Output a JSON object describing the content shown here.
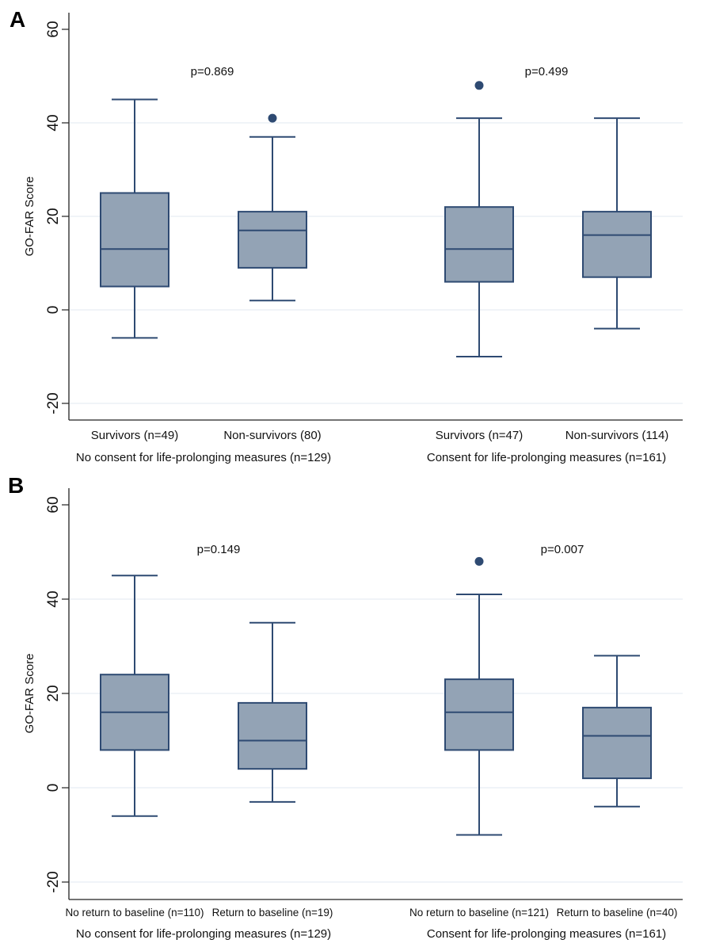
{
  "figure": {
    "colors": {
      "box_fill": "#93a3b5",
      "box_stroke": "#2e4a72",
      "outlier": "#2e4a72",
      "grid": "#e6eef4",
      "axis": "#222222"
    }
  },
  "chart_data": [
    {
      "type": "box",
      "panel_label": "A",
      "ylabel": "GO-FAR Score",
      "ylim": [
        -24,
        64
      ],
      "yticks": [
        -20,
        0,
        20,
        40,
        60
      ],
      "ytick_labels": [
        "-20",
        "0",
        "20",
        "40",
        "60"
      ],
      "grid": true,
      "groups": [
        {
          "label": "No consent for life-prolonging measures (n=129)",
          "p_value_label": "p=0.869",
          "boxes": [
            {
              "label": "Survivors (n=49)",
              "whisker_low": -6,
              "q1": 5,
              "median": 13,
              "q3": 25,
              "whisker_high": 45,
              "outliers": []
            },
            {
              "label": "Non-survivors (80)",
              "whisker_low": 2,
              "q1": 9,
              "median": 17,
              "q3": 21,
              "whisker_high": 37,
              "outliers": [
                41
              ]
            }
          ]
        },
        {
          "label": "Consent for life-prolonging measures (n=161)",
          "p_value_label": "p=0.499",
          "boxes": [
            {
              "label": "Survivors (n=47)",
              "whisker_low": -10,
              "q1": 6,
              "median": 13,
              "q3": 22,
              "whisker_high": 41,
              "outliers": [
                48
              ]
            },
            {
              "label": "Non-survivors (114)",
              "whisker_low": -4,
              "q1": 7,
              "median": 16,
              "q3": 21,
              "whisker_high": 41,
              "outliers": []
            }
          ]
        }
      ]
    },
    {
      "type": "box",
      "panel_label": "B",
      "ylabel": "GO-FAR Score",
      "ylim": [
        -24,
        64
      ],
      "yticks": [
        -20,
        0,
        20,
        40,
        60
      ],
      "ytick_labels": [
        "-20",
        "0",
        "20",
        "40",
        "60"
      ],
      "grid": true,
      "groups": [
        {
          "label": "No consent for life-prolonging measures (n=129)",
          "p_value_label": "p=0.149",
          "boxes": [
            {
              "label": "No return to baseline (n=110)",
              "whisker_low": -6,
              "q1": 8,
              "median": 16,
              "q3": 24,
              "whisker_high": 45,
              "outliers": []
            },
            {
              "label": "Return to baseline (n=19)",
              "whisker_low": -3,
              "q1": 4,
              "median": 10,
              "q3": 18,
              "whisker_high": 35,
              "outliers": []
            }
          ]
        },
        {
          "label": "Consent for life-prolonging measures (n=161)",
          "p_value_label": "p=0.007",
          "boxes": [
            {
              "label": "No return to baseline (n=121)",
              "whisker_low": -10,
              "q1": 8,
              "median": 16,
              "q3": 23,
              "whisker_high": 41,
              "outliers": [
                48
              ]
            },
            {
              "label": "Return to baseline (n=40)",
              "whisker_low": -4,
              "q1": 2,
              "median": 11,
              "q3": 17,
              "whisker_high": 28,
              "outliers": []
            }
          ]
        }
      ]
    }
  ]
}
